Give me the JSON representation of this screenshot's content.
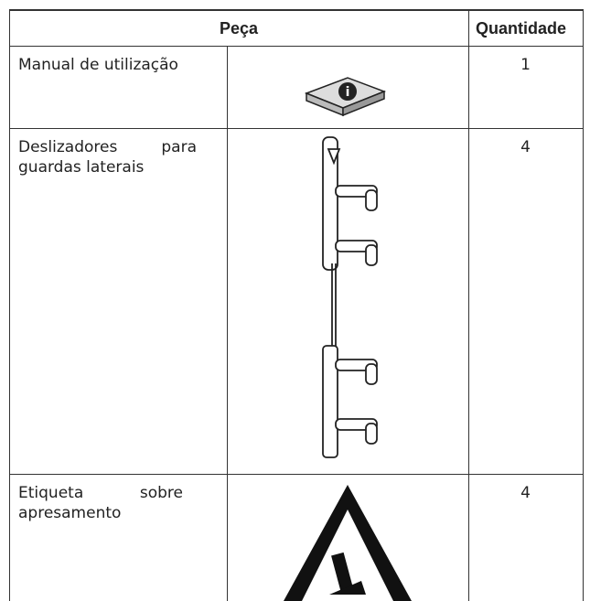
{
  "table": {
    "header": [
      "Peça",
      "Quantidade"
    ],
    "rows": [
      [
        "Manual de utilização",
        1
      ],
      [
        "Deslizadores para guardas laterais",
        4
      ],
      [
        "Etiqueta sobre apresamento",
        4
      ]
    ]
  }
}
